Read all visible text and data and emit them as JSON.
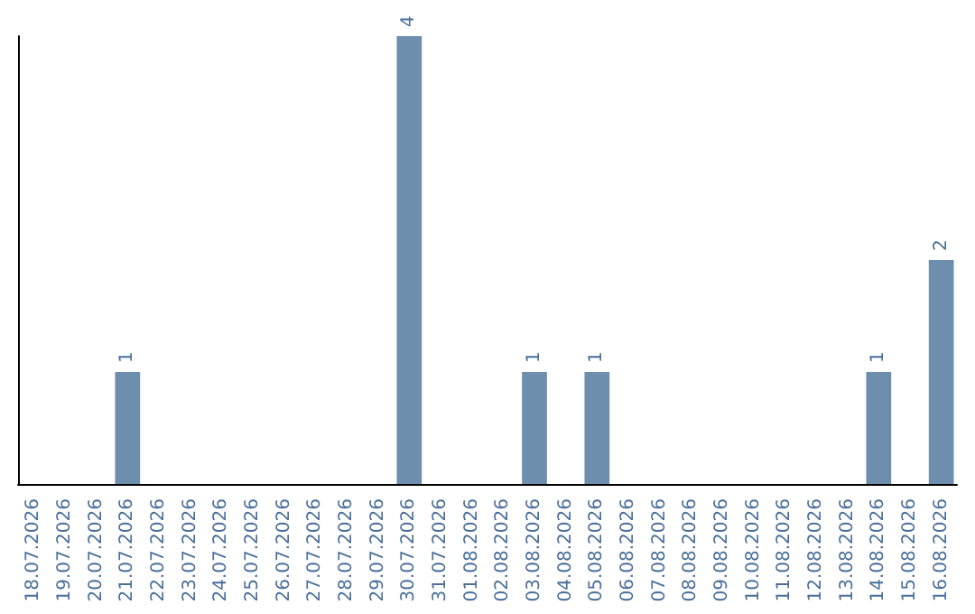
{
  "chart_data": {
    "type": "bar",
    "categories": [
      "18.07.2026",
      "19.07.2026",
      "20.07.2026",
      "21.07.2026",
      "22.07.2026",
      "23.07.2026",
      "24.07.2026",
      "25.07.2026",
      "26.07.2026",
      "27.07.2026",
      "28.07.2026",
      "29.07.2026",
      "30.07.2026",
      "31.07.2026",
      "01.08.2026",
      "02.08.2026",
      "03.08.2026",
      "04.08.2026",
      "05.08.2026",
      "06.08.2026",
      "07.08.2026",
      "08.08.2026",
      "09.08.2026",
      "10.08.2026",
      "11.08.2026",
      "12.08.2026",
      "13.08.2026",
      "14.08.2026",
      "15.08.2026",
      "16.08.2026"
    ],
    "values": [
      0,
      0,
      0,
      1,
      0,
      0,
      0,
      0,
      0,
      0,
      0,
      0,
      4,
      0,
      0,
      0,
      1,
      0,
      1,
      0,
      0,
      0,
      0,
      0,
      0,
      0,
      0,
      1,
      0,
      2
    ],
    "value_labels": [
      null,
      null,
      null,
      "1",
      null,
      null,
      null,
      null,
      null,
      null,
      null,
      null,
      "4",
      null,
      null,
      null,
      "1",
      null,
      "1",
      null,
      null,
      null,
      null,
      null,
      null,
      null,
      null,
      "1",
      null,
      "2"
    ],
    "color": "#6d8fad"
  }
}
